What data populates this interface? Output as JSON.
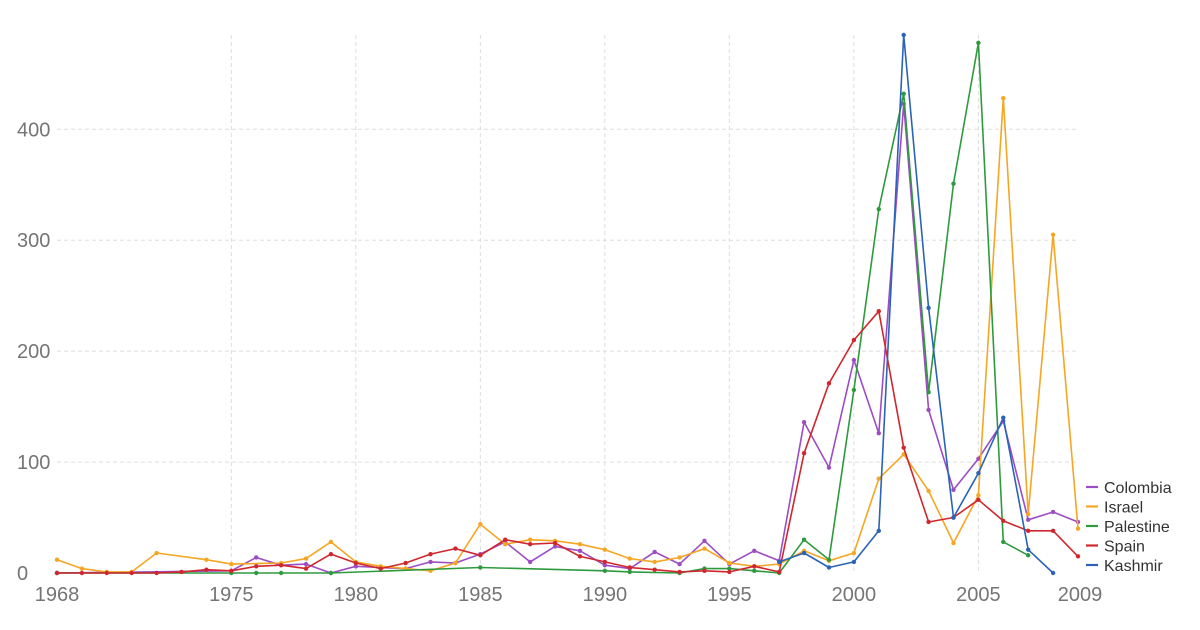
{
  "chart_data": {
    "type": "line",
    "x_ticks": [
      1968,
      1975,
      1980,
      1985,
      1990,
      1995,
      2000,
      2005,
      2009
    ],
    "y_ticks": [
      0,
      100,
      200,
      300,
      400
    ],
    "xlim": [
      1968,
      2009
    ],
    "ylim": [
      0,
      485
    ],
    "grid": true,
    "legend_position": "right-bottom",
    "series": [
      {
        "name": "Colombia",
        "color": "#9c4dc4",
        "points": [
          [
            1968,
            0
          ],
          [
            1975,
            2
          ],
          [
            1976,
            14
          ],
          [
            1977,
            7
          ],
          [
            1978,
            8
          ],
          [
            1979,
            0
          ],
          [
            1980,
            6
          ],
          [
            1981,
            5
          ],
          [
            1982,
            4
          ],
          [
            1983,
            10
          ],
          [
            1984,
            9
          ],
          [
            1985,
            17
          ],
          [
            1986,
            28
          ],
          [
            1987,
            10
          ],
          [
            1988,
            24
          ],
          [
            1989,
            20
          ],
          [
            1990,
            7
          ],
          [
            1991,
            4
          ],
          [
            1992,
            19
          ],
          [
            1993,
            8
          ],
          [
            1994,
            29
          ],
          [
            1995,
            8
          ],
          [
            1996,
            20
          ],
          [
            1997,
            11
          ],
          [
            1998,
            136
          ],
          [
            1999,
            95
          ],
          [
            2000,
            192
          ],
          [
            2001,
            126
          ],
          [
            2002,
            423
          ],
          [
            2003,
            147
          ],
          [
            2004,
            75
          ],
          [
            2005,
            103
          ],
          [
            2006,
            137
          ],
          [
            2007,
            48
          ],
          [
            2008,
            55
          ],
          [
            2009,
            46
          ]
        ]
      },
      {
        "name": "Israel",
        "color": "#f5a623",
        "points": [
          [
            1968,
            12
          ],
          [
            1969,
            4
          ],
          [
            1970,
            1
          ],
          [
            1971,
            1
          ],
          [
            1972,
            18
          ],
          [
            1974,
            12
          ],
          [
            1975,
            8
          ],
          [
            1977,
            9
          ],
          [
            1978,
            13
          ],
          [
            1979,
            28
          ],
          [
            1980,
            10
          ],
          [
            1981,
            6
          ],
          [
            1982,
            4
          ],
          [
            1983,
            2
          ],
          [
            1984,
            9
          ],
          [
            1985,
            44
          ],
          [
            1986,
            26
          ],
          [
            1987,
            30
          ],
          [
            1988,
            29
          ],
          [
            1989,
            26
          ],
          [
            1990,
            21
          ],
          [
            1991,
            13
          ],
          [
            1992,
            10
          ],
          [
            1993,
            14
          ],
          [
            1994,
            22
          ],
          [
            1995,
            9
          ],
          [
            1996,
            6
          ],
          [
            1997,
            8
          ],
          [
            1998,
            20
          ],
          [
            1999,
            11
          ],
          [
            2000,
            18
          ],
          [
            2001,
            85
          ],
          [
            2002,
            107
          ],
          [
            2003,
            74
          ],
          [
            2004,
            27
          ],
          [
            2005,
            70
          ],
          [
            2006,
            428
          ],
          [
            2007,
            53
          ],
          [
            2008,
            305
          ],
          [
            2009,
            40
          ]
        ]
      },
      {
        "name": "Palestine",
        "color": "#2e9a3e",
        "points": [
          [
            1968,
            0
          ],
          [
            1975,
            0
          ],
          [
            1976,
            0
          ],
          [
            1977,
            0
          ],
          [
            1979,
            0
          ],
          [
            1985,
            5
          ],
          [
            1990,
            2
          ],
          [
            1991,
            1
          ],
          [
            1993,
            0
          ],
          [
            1994,
            4
          ],
          [
            1995,
            4
          ],
          [
            1996,
            2
          ],
          [
            1997,
            0
          ],
          [
            1998,
            30
          ],
          [
            1999,
            12
          ],
          [
            2000,
            165
          ],
          [
            2001,
            328
          ],
          [
            2002,
            432
          ],
          [
            2003,
            163
          ],
          [
            2004,
            351
          ],
          [
            2005,
            478
          ],
          [
            2006,
            28
          ],
          [
            2007,
            16
          ]
        ]
      },
      {
        "name": "Spain",
        "color": "#d0272e",
        "points": [
          [
            1968,
            0
          ],
          [
            1969,
            0
          ],
          [
            1970,
            0
          ],
          [
            1971,
            0
          ],
          [
            1972,
            0
          ],
          [
            1973,
            1
          ],
          [
            1974,
            3
          ],
          [
            1975,
            2
          ],
          [
            1976,
            6
          ],
          [
            1977,
            7
          ],
          [
            1978,
            4
          ],
          [
            1979,
            17
          ],
          [
            1980,
            9
          ],
          [
            1981,
            4
          ],
          [
            1982,
            9
          ],
          [
            1983,
            17
          ],
          [
            1984,
            22
          ],
          [
            1985,
            16
          ],
          [
            1986,
            30
          ],
          [
            1987,
            26
          ],
          [
            1988,
            27
          ],
          [
            1989,
            15
          ],
          [
            1990,
            10
          ],
          [
            1991,
            5
          ],
          [
            1992,
            3
          ],
          [
            1993,
            1
          ],
          [
            1994,
            2
          ],
          [
            1995,
            1
          ],
          [
            1996,
            6
          ],
          [
            1997,
            1
          ],
          [
            1998,
            108
          ],
          [
            1999,
            171
          ],
          [
            2000,
            210
          ],
          [
            2001,
            236
          ],
          [
            2002,
            113
          ],
          [
            2003,
            46
          ],
          [
            2004,
            50
          ],
          [
            2005,
            66
          ],
          [
            2006,
            47
          ],
          [
            2007,
            38
          ],
          [
            2008,
            38
          ],
          [
            2009,
            15
          ]
        ]
      },
      {
        "name": "Kashmir",
        "color": "#2a63b7",
        "points": [
          [
            1997,
            10
          ],
          [
            1998,
            18
          ],
          [
            1999,
            5
          ],
          [
            2000,
            10
          ],
          [
            2001,
            38
          ],
          [
            2002,
            485
          ],
          [
            2003,
            239
          ],
          [
            2004,
            50
          ],
          [
            2005,
            90
          ],
          [
            2006,
            140
          ],
          [
            2007,
            21
          ],
          [
            2008,
            0
          ]
        ]
      }
    ]
  }
}
